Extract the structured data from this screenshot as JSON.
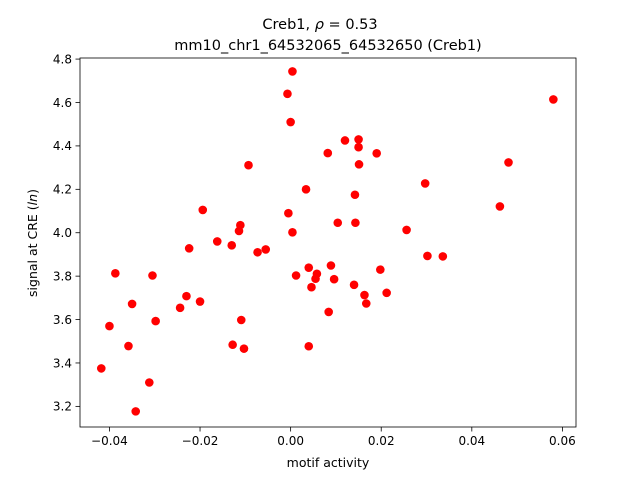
{
  "figure": {
    "title_line1_prefix": "Creb1, ",
    "title_line1_rho": "ρ",
    "title_line1_value": " = 0.53",
    "title_line2": "mm10_chr1_64532065_64532650 (Creb1)"
  },
  "chart_data": {
    "type": "scatter",
    "title": "Creb1, ρ = 0.53\nmm10_chr1_64532065_64532650 (Creb1)",
    "xlabel": "motif activity",
    "ylabel_prefix": "signal at CRE (",
    "ylabel_italic": "ln",
    "ylabel_suffix": ")",
    "xlim": [
      -0.0465,
      0.063
    ],
    "ylim": [
      3.105,
      4.805
    ],
    "xticks": [
      -0.04,
      -0.02,
      0.0,
      0.02,
      0.04,
      0.06
    ],
    "xtick_labels": [
      "−0.04",
      "−0.02",
      "0.00",
      "0.02",
      "0.04",
      "0.06"
    ],
    "yticks": [
      3.2,
      3.4,
      3.6,
      3.8,
      4.0,
      4.2,
      4.4,
      4.6,
      4.8
    ],
    "ytick_labels": [
      "3.2",
      "3.4",
      "3.6",
      "3.8",
      "4.0",
      "4.2",
      "4.4",
      "4.6",
      "4.8"
    ],
    "grid": false,
    "legend": "none",
    "marker_color": "#ff0000",
    "points": [
      [
        -0.0418,
        3.375
      ],
      [
        -0.04,
        3.57
      ],
      [
        -0.0387,
        3.813
      ],
      [
        -0.0358,
        3.478
      ],
      [
        -0.035,
        3.672
      ],
      [
        -0.0342,
        3.177
      ],
      [
        -0.0312,
        3.31
      ],
      [
        -0.0305,
        3.803
      ],
      [
        -0.0298,
        3.593
      ],
      [
        -0.0244,
        3.654
      ],
      [
        -0.023,
        3.708
      ],
      [
        -0.0224,
        3.928
      ],
      [
        -0.02,
        3.683
      ],
      [
        -0.0194,
        4.105
      ],
      [
        -0.0162,
        3.96
      ],
      [
        -0.013,
        3.942
      ],
      [
        -0.0128,
        3.484
      ],
      [
        -0.0114,
        4.008
      ],
      [
        -0.0111,
        4.035
      ],
      [
        -0.0109,
        3.598
      ],
      [
        -0.0103,
        3.466
      ],
      [
        -0.0093,
        4.311
      ],
      [
        -0.0073,
        3.91
      ],
      [
        -0.0055,
        3.923
      ],
      [
        -0.0007,
        4.64
      ],
      [
        -0.0005,
        4.09
      ],
      [
        0.0,
        4.51
      ],
      [
        0.0004,
        4.743
      ],
      [
        0.0004,
        4.002
      ],
      [
        0.0012,
        3.803
      ],
      [
        0.0034,
        4.2
      ],
      [
        0.004,
        3.839
      ],
      [
        0.004,
        3.477
      ],
      [
        0.0046,
        3.749
      ],
      [
        0.0055,
        3.788
      ],
      [
        0.0058,
        3.811
      ],
      [
        0.0082,
        4.367
      ],
      [
        0.0084,
        3.635
      ],
      [
        0.0089,
        3.849
      ],
      [
        0.0096,
        3.786
      ],
      [
        0.0104,
        4.046
      ],
      [
        0.012,
        4.425
      ],
      [
        0.014,
        3.76
      ],
      [
        0.0142,
        4.175
      ],
      [
        0.0143,
        4.046
      ],
      [
        0.015,
        4.43
      ],
      [
        0.015,
        4.394
      ],
      [
        0.0151,
        4.315
      ],
      [
        0.0163,
        3.713
      ],
      [
        0.0167,
        3.674
      ],
      [
        0.019,
        4.366
      ],
      [
        0.0198,
        3.83
      ],
      [
        0.0212,
        3.723
      ],
      [
        0.0256,
        4.013
      ],
      [
        0.0297,
        4.227
      ],
      [
        0.0302,
        3.893
      ],
      [
        0.0336,
        3.891
      ],
      [
        0.0462,
        4.121
      ],
      [
        0.0481,
        4.324
      ],
      [
        0.058,
        4.614
      ]
    ]
  }
}
